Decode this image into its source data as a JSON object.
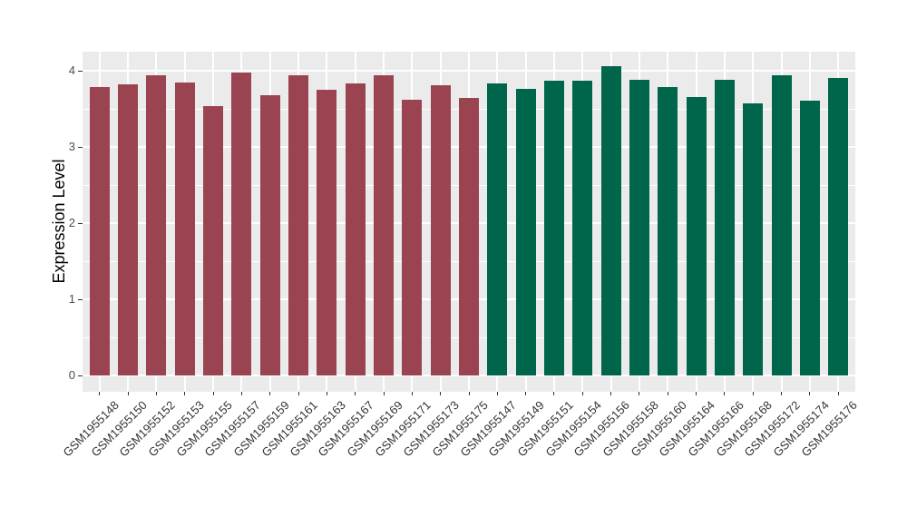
{
  "figure": {
    "background": "#FFFFFF",
    "panel_background": "#EBEBEB",
    "gridline_color": "#FFFFFF",
    "y_tick_text_color": "#4D4D4D",
    "x_tick_text_color": "#333333",
    "axis_title_color": "#000000"
  },
  "chart_data": {
    "type": "bar",
    "title": "",
    "xlabel": "",
    "ylabel": "Expression Level",
    "ylim": [
      0,
      4.25
    ],
    "yticks": [
      0,
      1,
      2,
      3,
      4
    ],
    "yminor_step": 0.5,
    "grid": true,
    "legend": false,
    "group_colors": {
      "group1": "#9A4351",
      "group2": "#00664B"
    },
    "bars": [
      {
        "label": "GSM1955148",
        "value": 3.79,
        "group": "group1"
      },
      {
        "label": "GSM1955150",
        "value": 3.83,
        "group": "group1"
      },
      {
        "label": "GSM1955152",
        "value": 3.94,
        "group": "group1"
      },
      {
        "label": "GSM1955153",
        "value": 3.85,
        "group": "group1"
      },
      {
        "label": "GSM1955155",
        "value": 3.54,
        "group": "group1"
      },
      {
        "label": "GSM1955157",
        "value": 3.98,
        "group": "group1"
      },
      {
        "label": "GSM1955159",
        "value": 3.68,
        "group": "group1"
      },
      {
        "label": "GSM1955161",
        "value": 3.95,
        "group": "group1"
      },
      {
        "label": "GSM1955163",
        "value": 3.76,
        "group": "group1"
      },
      {
        "label": "GSM1955167",
        "value": 3.84,
        "group": "group1"
      },
      {
        "label": "GSM1955169",
        "value": 3.95,
        "group": "group1"
      },
      {
        "label": "GSM1955171",
        "value": 3.62,
        "group": "group1"
      },
      {
        "label": "GSM1955173",
        "value": 3.81,
        "group": "group1"
      },
      {
        "label": "GSM1955175",
        "value": 3.65,
        "group": "group1"
      },
      {
        "label": "GSM1955147",
        "value": 3.84,
        "group": "group2"
      },
      {
        "label": "GSM1955149",
        "value": 3.77,
        "group": "group2"
      },
      {
        "label": "GSM1955151",
        "value": 3.87,
        "group": "group2"
      },
      {
        "label": "GSM1955154",
        "value": 3.87,
        "group": "group2"
      },
      {
        "label": "GSM1955156",
        "value": 4.06,
        "group": "group2"
      },
      {
        "label": "GSM1955158",
        "value": 3.88,
        "group": "group2"
      },
      {
        "label": "GSM1955160",
        "value": 3.79,
        "group": "group2"
      },
      {
        "label": "GSM1955164",
        "value": 3.66,
        "group": "group2"
      },
      {
        "label": "GSM1955166",
        "value": 3.89,
        "group": "group2"
      },
      {
        "label": "GSM1955168",
        "value": 3.58,
        "group": "group2"
      },
      {
        "label": "GSM1955172",
        "value": 3.94,
        "group": "group2"
      },
      {
        "label": "GSM1955174",
        "value": 3.61,
        "group": "group2"
      },
      {
        "label": "GSM1955176",
        "value": 3.91,
        "group": "group2"
      }
    ]
  }
}
